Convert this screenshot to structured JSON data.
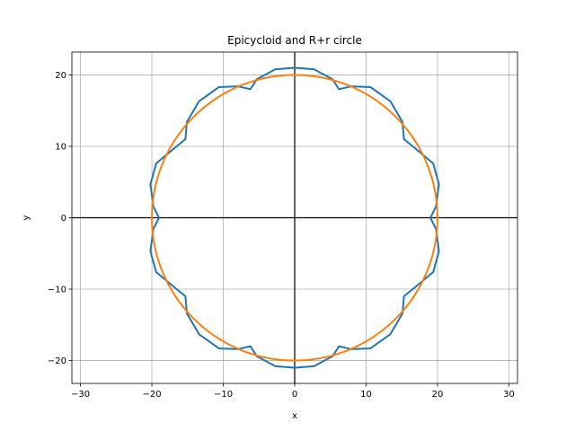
{
  "chart_data": {
    "type": "line",
    "title": "Epicycloid and R+r circle",
    "xlabel": "x",
    "ylabel": "y",
    "xlim": [
      -31.2,
      31.2
    ],
    "ylim": [
      -23.2,
      23.2
    ],
    "x_ticks": [
      -30,
      -20,
      -10,
      0,
      10,
      20,
      30
    ],
    "y_ticks": [
      -20,
      -10,
      0,
      10,
      20
    ],
    "x_tick_labels": [
      "−30",
      "−20",
      "−10",
      "0",
      "10",
      "20",
      "30"
    ],
    "y_tick_labels": [
      "−20",
      "−10",
      "0",
      "10",
      "20"
    ],
    "grid": true,
    "reference_lines": {
      "x": 0,
      "y": 0,
      "color": "#000000"
    },
    "series": [
      {
        "kind": "epicycloid",
        "color": "#1f77b4",
        "x": [
          0,
          2.7,
          5.3,
          6.2,
          7.9,
          10.6,
          13.4,
          15.1,
          15.3,
          16.9,
          19.4,
          20.2,
          19.8,
          19.0,
          19.8,
          20.2,
          19.4,
          16.9,
          15.3,
          15.1,
          13.4,
          10.6,
          7.9,
          6.2,
          5.3,
          2.7,
          0,
          -2.7,
          -5.3,
          -6.2,
          -7.9,
          -10.6,
          -13.4,
          -15.1,
          -15.3,
          -16.9,
          -19.4,
          -20.2,
          -19.8,
          -19.0,
          -19.8,
          -20.2,
          -19.4,
          -16.9,
          -15.3,
          -15.1,
          -13.4,
          -10.6,
          -7.9,
          -6.2,
          -5.3,
          -2.7,
          0
        ],
        "y": [
          21.0,
          20.8,
          19.4,
          18.0,
          18.4,
          18.3,
          16.3,
          13.4,
          11.0,
          9.7,
          7.6,
          4.7,
          1.6,
          0,
          -1.6,
          -4.7,
          -7.6,
          -9.7,
          -11.0,
          -13.4,
          -16.3,
          -18.3,
          -18.4,
          -18.0,
          -19.4,
          -20.8,
          -21.0,
          -20.8,
          -19.4,
          -18.0,
          -18.4,
          -18.3,
          -16.3,
          -13.4,
          -11.0,
          -9.7,
          -7.6,
          -4.7,
          -1.6,
          0,
          1.6,
          4.7,
          7.6,
          9.7,
          11.0,
          13.4,
          16.3,
          18.3,
          18.4,
          18.0,
          19.4,
          20.8,
          21.0
        ]
      },
      {
        "kind": "circle",
        "color": "#ff7f0e",
        "center": [
          0,
          0
        ],
        "radius": 20
      }
    ]
  }
}
